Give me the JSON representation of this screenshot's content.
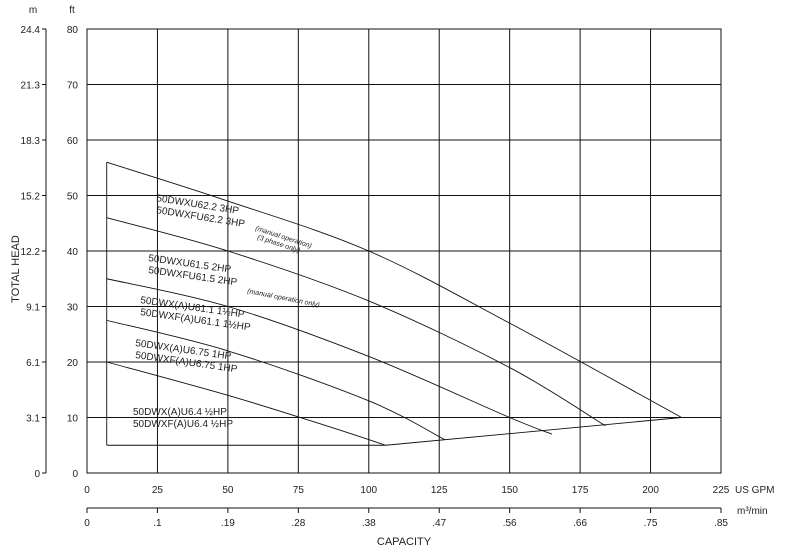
{
  "chart_data": {
    "type": "line",
    "units": {
      "left_outer": "m",
      "left_inner": "ft",
      "x_primary": "US GPM",
      "x_secondary": "m³/min"
    },
    "xlabel": "CAPACITY",
    "ylabel": "TOTAL HEAD",
    "xlim": [
      0,
      225
    ],
    "ylim": [
      0,
      80
    ],
    "grid": true,
    "x_ticks": [
      "0",
      "25",
      "50",
      "75",
      "100",
      "125",
      "150",
      "175",
      "200",
      "225"
    ],
    "x2_ticks": [
      "0",
      ".1",
      ".19",
      ".28",
      ".38",
      ".47",
      ".56",
      ".66",
      ".75",
      ".85"
    ],
    "y_ticks_ft": [
      "0",
      "10",
      "20",
      "30",
      "40",
      "50",
      "60",
      "70",
      "80"
    ],
    "y_ticks_m": [
      "0",
      "3.1",
      "6.1",
      "9.1",
      "12.2",
      "15.2",
      "18.3",
      "21.3",
      "24.4"
    ],
    "series": [
      {
        "name": "50DWXU62.2 3HP / 50DWXFU62.2 3HP",
        "x": [
          7,
          50,
          100,
          150,
          211
        ],
        "y": [
          56,
          49,
          40,
          27,
          10
        ]
      },
      {
        "name": "50DWXU61.5 2HP / 50DWXFU61.5 2HP",
        "x": [
          7,
          50,
          100,
          150,
          184
        ],
        "y": [
          46,
          40,
          31,
          19,
          8.5
        ]
      },
      {
        "name": "50DWX(A)U61.1 1½HP / 50DWXF(A)U61.1 1½HP",
        "x": [
          7,
          50,
          100,
          150,
          165
        ],
        "y": [
          35,
          30,
          21,
          10,
          7
        ]
      },
      {
        "name": "50DWX(A)U6.75 1HP / 50DWXF(A)U6.75 1HP",
        "x": [
          7,
          50,
          100,
          127
        ],
        "y": [
          27.5,
          22,
          13,
          6
        ]
      },
      {
        "name": "50DWX(A)U6.4 ½HP / 50DWXF(A)U6.4 ½HP",
        "x": [
          7,
          50,
          85,
          106
        ],
        "y": [
          20,
          14,
          8.5,
          5
        ]
      }
    ],
    "region_boundary": {
      "left_x": 7,
      "left_y_range": [
        5,
        56
      ],
      "bottom": {
        "x": [
          7,
          106
        ],
        "y": [
          5,
          5
        ]
      },
      "lower_right": {
        "x": [
          106,
          211
        ],
        "y": [
          5,
          10
        ]
      }
    },
    "labels": [
      {
        "lines": [
          "50DWXU62.2  3HP",
          "50DWXFU62.2  3HP"
        ],
        "note": [
          "(manual operation)",
          "(3 phase only)"
        ]
      },
      {
        "lines": [
          "50DWXU61.5  2HP",
          "50DWXFU61.5  2HP"
        ],
        "note": [
          "(manual operation only)"
        ]
      },
      {
        "lines": [
          "50DWX(A)U61.1  1½HP",
          "50DWXF(A)U61.1  1½HP"
        ],
        "note": []
      },
      {
        "lines": [
          "50DWX(A)U6.75  1HP",
          "50DWXF(A)U6.75  1HP"
        ],
        "note": []
      },
      {
        "lines": [
          "50DWX(A)U6.4  ½HP",
          "50DWXF(A)U6.4  ½HP"
        ],
        "note": []
      }
    ]
  }
}
